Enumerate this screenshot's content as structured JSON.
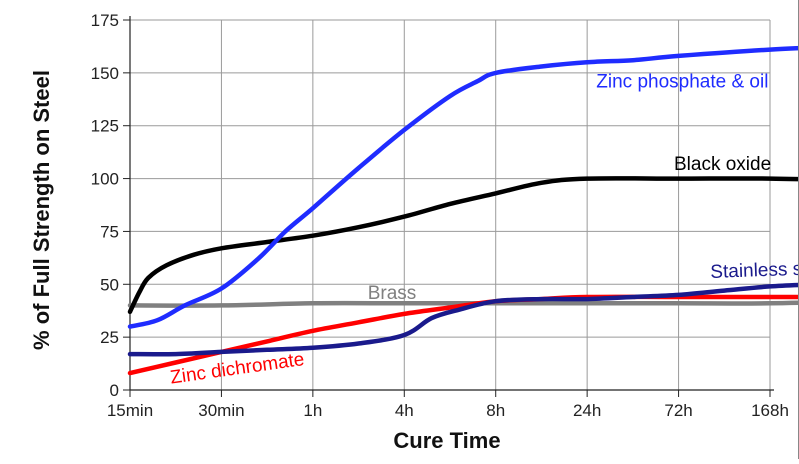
{
  "chart_data": {
    "type": "line",
    "xlabel": "Cure Time",
    "ylabel": "% of Full Strength on Steel",
    "x_categories": [
      "15min",
      "30min",
      "1h",
      "4h",
      "8h",
      "24h",
      "72h",
      "168h"
    ],
    "yticks": [
      0,
      25,
      50,
      75,
      100,
      125,
      150,
      175
    ],
    "ylim": [
      0,
      175
    ],
    "grid": true,
    "series": [
      {
        "name": "Zinc phosphate & oil",
        "color": "#1f2cff",
        "points": [
          [
            0,
            30
          ],
          [
            0.3,
            33
          ],
          [
            0.6,
            40
          ],
          [
            1,
            48
          ],
          [
            1.4,
            62
          ],
          [
            1.7,
            75
          ],
          [
            2,
            86
          ],
          [
            2.5,
            105
          ],
          [
            3,
            123
          ],
          [
            3.5,
            139
          ],
          [
            3.8,
            146
          ],
          [
            4,
            150
          ],
          [
            4.5,
            153
          ],
          [
            5,
            155
          ],
          [
            5.5,
            156
          ],
          [
            6,
            158
          ],
          [
            7,
            161
          ],
          [
            8,
            163
          ]
        ]
      },
      {
        "name": "Black oxide",
        "color": "#000000",
        "points": [
          [
            0,
            37
          ],
          [
            0.1,
            46
          ],
          [
            0.2,
            53
          ],
          [
            0.4,
            59
          ],
          [
            0.7,
            64
          ],
          [
            1,
            67
          ],
          [
            1.5,
            70
          ],
          [
            2,
            73
          ],
          [
            2.5,
            77
          ],
          [
            3,
            82
          ],
          [
            3.5,
            88
          ],
          [
            4,
            93
          ],
          [
            4.5,
            98
          ],
          [
            5,
            100
          ],
          [
            6,
            100
          ],
          [
            7,
            100
          ],
          [
            8,
            99
          ]
        ]
      },
      {
        "name": "Stainless steel",
        "color": "#1a1a8c",
        "points": [
          [
            0,
            17
          ],
          [
            0.5,
            17
          ],
          [
            1,
            18
          ],
          [
            1.5,
            19
          ],
          [
            2,
            20
          ],
          [
            2.5,
            22
          ],
          [
            3,
            26
          ],
          [
            3.3,
            34
          ],
          [
            3.6,
            38
          ],
          [
            4,
            42
          ],
          [
            4.5,
            43
          ],
          [
            5,
            43
          ],
          [
            5.5,
            44
          ],
          [
            6,
            45
          ],
          [
            6.5,
            47
          ],
          [
            7,
            49
          ],
          [
            7.5,
            50
          ],
          [
            8,
            51
          ]
        ]
      },
      {
        "name": "Brass",
        "color": "#808080",
        "points": [
          [
            0,
            40
          ],
          [
            1,
            40
          ],
          [
            2,
            41
          ],
          [
            3,
            41
          ],
          [
            4,
            41
          ],
          [
            5,
            41
          ],
          [
            6,
            41
          ],
          [
            7,
            41
          ],
          [
            8,
            42
          ]
        ]
      },
      {
        "name": "Zinc dichromate",
        "color": "#ff0000",
        "points": [
          [
            0,
            8
          ],
          [
            0.5,
            13
          ],
          [
            1,
            18
          ],
          [
            1.5,
            23
          ],
          [
            2,
            28
          ],
          [
            2.5,
            32
          ],
          [
            3,
            36
          ],
          [
            3.5,
            39
          ],
          [
            4,
            42
          ],
          [
            4.5,
            43
          ],
          [
            5,
            44
          ],
          [
            6,
            44
          ],
          [
            7,
            44
          ],
          [
            8,
            44
          ]
        ]
      }
    ],
    "annotations": [
      {
        "text": "Zinc phosphate & oil",
        "series": "Zinc phosphate & oil",
        "x": 5.1,
        "y": 143,
        "color": "#1f2cff",
        "rotate": 0
      },
      {
        "text": "Black oxide",
        "series": "Black oxide",
        "x": 5.95,
        "y": 104,
        "color": "#000000",
        "rotate": 0
      },
      {
        "text": "Stainless steel",
        "series": "Stainless steel",
        "x": 6.35,
        "y": 53,
        "color": "#1a1a8c",
        "rotate": -2
      },
      {
        "text": "Brass",
        "series": "Brass",
        "x": 2.6,
        "y": 43,
        "color": "#808080",
        "rotate": 0
      },
      {
        "text": "Zinc dichromate",
        "series": "Zinc dichromate",
        "x": 0.45,
        "y": 3,
        "color": "#ff0000",
        "rotate": -8
      }
    ]
  }
}
